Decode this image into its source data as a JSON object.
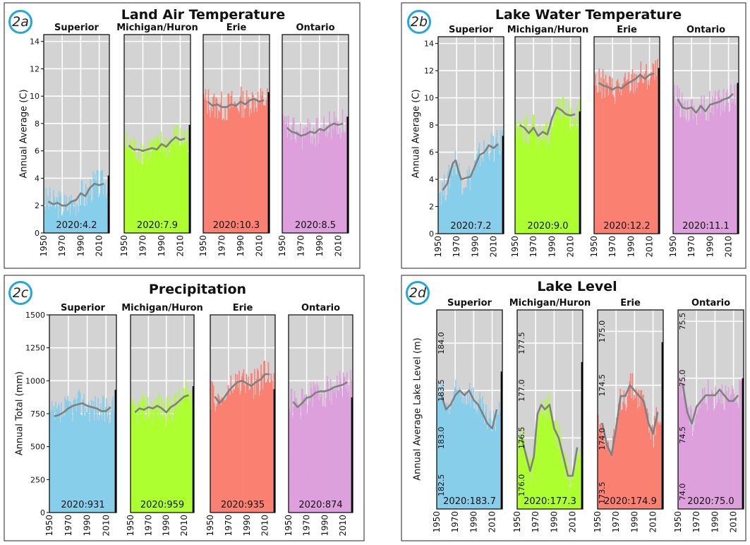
{
  "chart_data": [
    {
      "id": "2a",
      "badge": "2a",
      "title": "Land Air Temperature",
      "type": "bar",
      "ylabel": "Annual Average (C)",
      "ylim": [
        0,
        14.5
      ],
      "yticks": [
        0,
        2,
        4,
        6,
        8,
        10,
        12,
        14
      ],
      "yticks_on_each": false,
      "xticks": [
        "1950",
        "1970",
        "1990",
        "2010"
      ],
      "lakes": [
        {
          "name": "Superior",
          "color": "#87ceeb",
          "label": "2020:4.2",
          "final": 4.2,
          "base": 2.3,
          "trend": [
            [
              1955,
              2.3
            ],
            [
              1960,
              2.1
            ],
            [
              1965,
              2.2
            ],
            [
              1970,
              2.0
            ],
            [
              1975,
              2.0
            ],
            [
              1980,
              2.3
            ],
            [
              1985,
              2.4
            ],
            [
              1990,
              2.9
            ],
            [
              1995,
              2.7
            ],
            [
              2000,
              3.3
            ],
            [
              2005,
              3.6
            ],
            [
              2010,
              3.5
            ],
            [
              2015,
              3.6
            ]
          ]
        },
        {
          "name": "Michigan/Huron",
          "color": "#adff2f",
          "label": "2020:7.9",
          "final": 7.9,
          "base": 6.3,
          "trend": [
            [
              1955,
              6.4
            ],
            [
              1960,
              6.1
            ],
            [
              1965,
              6.1
            ],
            [
              1970,
              6.0
            ],
            [
              1975,
              6.1
            ],
            [
              1980,
              6.2
            ],
            [
              1985,
              6.1
            ],
            [
              1990,
              6.5
            ],
            [
              1995,
              6.3
            ],
            [
              2000,
              6.7
            ],
            [
              2005,
              7.0
            ],
            [
              2010,
              6.8
            ],
            [
              2015,
              6.9
            ]
          ]
        },
        {
          "name": "Erie",
          "color": "#fa8072",
          "label": "2020:10.3",
          "final": 10.3,
          "base": 9.5,
          "trend": [
            [
              1955,
              9.6
            ],
            [
              1960,
              9.3
            ],
            [
              1965,
              9.4
            ],
            [
              1970,
              9.2
            ],
            [
              1975,
              9.2
            ],
            [
              1980,
              9.4
            ],
            [
              1985,
              9.3
            ],
            [
              1990,
              9.6
            ],
            [
              1995,
              9.4
            ],
            [
              2000,
              9.7
            ],
            [
              2005,
              9.8
            ],
            [
              2010,
              9.6
            ],
            [
              2015,
              9.7
            ]
          ]
        },
        {
          "name": "Ontario",
          "color": "#dda0dd",
          "label": "2020:8.5",
          "final": 8.5,
          "base": 7.5,
          "trend": [
            [
              1955,
              7.7
            ],
            [
              1960,
              7.4
            ],
            [
              1965,
              7.3
            ],
            [
              1970,
              7.1
            ],
            [
              1975,
              7.2
            ],
            [
              1980,
              7.4
            ],
            [
              1985,
              7.3
            ],
            [
              1990,
              7.6
            ],
            [
              1995,
              7.5
            ],
            [
              2000,
              7.8
            ],
            [
              2005,
              8.0
            ],
            [
              2010,
              7.9
            ],
            [
              2015,
              8.0
            ]
          ]
        }
      ]
    },
    {
      "id": "2b",
      "badge": "2b",
      "title": "Lake Water Temperature",
      "type": "bar",
      "ylabel": "Annual Average (C)",
      "ylim": [
        0,
        14.5
      ],
      "yticks": [
        0,
        2,
        4,
        6,
        8,
        10,
        12,
        14
      ],
      "yticks_on_each": false,
      "xticks": [
        "1950",
        "1970",
        "1990",
        "2010"
      ],
      "lakes": [
        {
          "name": "Superior",
          "color": "#87ceeb",
          "label": "2020:7.2",
          "final": 7.2,
          "base": 4.6,
          "trend": [
            [
              1955,
              3.2
            ],
            [
              1960,
              3.7
            ],
            [
              1963,
              4.5
            ],
            [
              1966,
              5.2
            ],
            [
              1969,
              5.4
            ],
            [
              1972,
              4.6
            ],
            [
              1975,
              4.0
            ],
            [
              1980,
              4.1
            ],
            [
              1985,
              4.2
            ],
            [
              1990,
              5.0
            ],
            [
              1995,
              5.8
            ],
            [
              2000,
              6.0
            ],
            [
              2005,
              6.5
            ],
            [
              2010,
              6.3
            ],
            [
              2015,
              6.6
            ]
          ]
        },
        {
          "name": "Michigan/Huron",
          "color": "#adff2f",
          "label": "2020:9.0",
          "final": 9.0,
          "base": 7.8,
          "trend": [
            [
              1955,
              8.0
            ],
            [
              1960,
              7.8
            ],
            [
              1965,
              7.4
            ],
            [
              1970,
              7.8
            ],
            [
              1975,
              7.2
            ],
            [
              1980,
              7.5
            ],
            [
              1985,
              7.3
            ],
            [
              1990,
              8.5
            ],
            [
              1995,
              9.3
            ],
            [
              2000,
              9.1
            ],
            [
              2005,
              8.8
            ],
            [
              2010,
              8.7
            ],
            [
              2015,
              8.8
            ]
          ]
        },
        {
          "name": "Erie",
          "color": "#fa8072",
          "label": "2020:12.2",
          "final": 12.2,
          "base": 11.2,
          "trend": [
            [
              1955,
              11.1
            ],
            [
              1960,
              10.9
            ],
            [
              1965,
              10.8
            ],
            [
              1970,
              10.6
            ],
            [
              1975,
              10.8
            ],
            [
              1980,
              10.7
            ],
            [
              1985,
              11.0
            ],
            [
              1990,
              11.2
            ],
            [
              1995,
              11.4
            ],
            [
              2000,
              11.7
            ],
            [
              2005,
              11.4
            ],
            [
              2010,
              11.7
            ],
            [
              2015,
              11.8
            ]
          ]
        },
        {
          "name": "Ontario",
          "color": "#dda0dd",
          "label": "2020:11.1",
          "final": 11.1,
          "base": 9.4,
          "trend": [
            [
              1955,
              9.9
            ],
            [
              1960,
              9.3
            ],
            [
              1965,
              9.2
            ],
            [
              1970,
              9.3
            ],
            [
              1975,
              8.9
            ],
            [
              1980,
              9.4
            ],
            [
              1985,
              9.0
            ],
            [
              1990,
              9.5
            ],
            [
              1995,
              9.6
            ],
            [
              2000,
              9.7
            ],
            [
              2005,
              9.9
            ],
            [
              2010,
              10.0
            ],
            [
              2015,
              10.3
            ]
          ]
        }
      ]
    },
    {
      "id": "2c",
      "badge": "2c",
      "title": "Precipitation",
      "type": "bar",
      "ylabel": "Annual Total (mm)",
      "ylim": [
        0,
        1500
      ],
      "yticks": [
        0,
        250,
        500,
        750,
        1000,
        1250,
        1500
      ],
      "yticks_on_each": false,
      "xticks": [
        "1950",
        "1970",
        "1990",
        "2010"
      ],
      "lakes": [
        {
          "name": "Superior",
          "color": "#87ceeb",
          "label": "2020:931",
          "final": 931,
          "base": 790,
          "trend": [
            [
              1955,
              730
            ],
            [
              1960,
              740
            ],
            [
              1965,
              760
            ],
            [
              1970,
              790
            ],
            [
              1975,
              810
            ],
            [
              1980,
              820
            ],
            [
              1985,
              830
            ],
            [
              1990,
              810
            ],
            [
              1995,
              800
            ],
            [
              2000,
              790
            ],
            [
              2005,
              770
            ],
            [
              2010,
              770
            ],
            [
              2015,
              800
            ]
          ]
        },
        {
          "name": "Michigan/Huron",
          "color": "#adff2f",
          "label": "2020:959",
          "final": 959,
          "base": 820,
          "trend": [
            [
              1955,
              760
            ],
            [
              1960,
              790
            ],
            [
              1965,
              780
            ],
            [
              1970,
              800
            ],
            [
              1975,
              790
            ],
            [
              1980,
              810
            ],
            [
              1985,
              790
            ],
            [
              1990,
              760
            ],
            [
              1995,
              800
            ],
            [
              2000,
              820
            ],
            [
              2005,
              850
            ],
            [
              2010,
              880
            ],
            [
              2015,
              890
            ]
          ]
        },
        {
          "name": "Erie",
          "color": "#fa8072",
          "label": "2020:935",
          "final": 935,
          "base": 920,
          "trend": [
            [
              1955,
              880
            ],
            [
              1960,
              830
            ],
            [
              1965,
              870
            ],
            [
              1970,
              920
            ],
            [
              1975,
              960
            ],
            [
              1980,
              990
            ],
            [
              1985,
              1000
            ],
            [
              1990,
              980
            ],
            [
              1995,
              960
            ],
            [
              2000,
              990
            ],
            [
              2005,
              1010
            ],
            [
              2010,
              1050
            ],
            [
              2015,
              1050
            ]
          ]
        },
        {
          "name": "Ontario",
          "color": "#dda0dd",
          "label": "2020:874",
          "final": 874,
          "base": 880,
          "trend": [
            [
              1955,
              840
            ],
            [
              1960,
              800
            ],
            [
              1965,
              830
            ],
            [
              1970,
              870
            ],
            [
              1975,
              880
            ],
            [
              1980,
              910
            ],
            [
              1985,
              920
            ],
            [
              1990,
              920
            ],
            [
              1995,
              930
            ],
            [
              2000,
              950
            ],
            [
              2005,
              960
            ],
            [
              2010,
              970
            ],
            [
              2015,
              990
            ]
          ]
        }
      ]
    },
    {
      "id": "2d",
      "badge": "2d",
      "title": "Lake Level",
      "type": "bar",
      "ylabel": "Annual Average Lake Level (m)",
      "yticks_on_each": true,
      "xticks": [
        "1950",
        "1970",
        "1990",
        "2010"
      ],
      "lakes": [
        {
          "name": "Superior",
          "color": "#87ceeb",
          "label": "2020:183.7",
          "final": 183.7,
          "base": 183.3,
          "ylim": [
            182.25,
            184.35
          ],
          "yticks": [
            182.5,
            183.0,
            183.5,
            184.0
          ],
          "trend": [
            [
              1955,
              183.45
            ],
            [
              1960,
              183.3
            ],
            [
              1965,
              183.35
            ],
            [
              1970,
              183.45
            ],
            [
              1975,
              183.5
            ],
            [
              1980,
              183.45
            ],
            [
              1985,
              183.5
            ],
            [
              1990,
              183.4
            ],
            [
              1995,
              183.35
            ],
            [
              2000,
              183.25
            ],
            [
              2005,
              183.15
            ],
            [
              2010,
              183.1
            ],
            [
              2015,
              183.3
            ]
          ]
        },
        {
          "name": "Michigan/Huron",
          "color": "#adff2f",
          "label": "2020:177.3",
          "final": 177.3,
          "base": 176.5,
          "ylim": [
            175.75,
            177.85
          ],
          "yticks": [
            176.0,
            176.5,
            177.0,
            177.5
          ],
          "trend": [
            [
              1955,
              176.5
            ],
            [
              1960,
              176.3
            ],
            [
              1964,
              176.15
            ],
            [
              1968,
              176.3
            ],
            [
              1972,
              176.75
            ],
            [
              1976,
              176.85
            ],
            [
              1980,
              176.8
            ],
            [
              1985,
              176.85
            ],
            [
              1990,
              176.6
            ],
            [
              1995,
              176.5
            ],
            [
              2000,
              176.3
            ],
            [
              2005,
              176.1
            ],
            [
              2010,
              176.1
            ],
            [
              2015,
              176.4
            ]
          ]
        },
        {
          "name": "Erie",
          "color": "#fa8072",
          "label": "2020:174.9",
          "final": 174.9,
          "base": 174.2,
          "ylim": [
            173.35,
            175.2
          ],
          "yticks": [
            173.5,
            174.0,
            174.5,
            175.0
          ],
          "trend": [
            [
              1955,
              174.15
            ],
            [
              1960,
              173.95
            ],
            [
              1965,
              173.85
            ],
            [
              1970,
              174.1
            ],
            [
              1975,
              174.4
            ],
            [
              1980,
              174.4
            ],
            [
              1985,
              174.5
            ],
            [
              1990,
              174.45
            ],
            [
              1995,
              174.4
            ],
            [
              2000,
              174.35
            ],
            [
              2005,
              174.15
            ],
            [
              2010,
              174.05
            ],
            [
              2015,
              174.25
            ]
          ]
        },
        {
          "name": "Ontario",
          "color": "#dda0dd",
          "label": "2020:75.0",
          "final": 75.0,
          "base": 74.8,
          "ylim": [
            73.85,
            75.6
          ],
          "yticks": [
            74.0,
            74.5,
            75.0,
            75.5
          ],
          "trend": [
            [
              1955,
              74.95
            ],
            [
              1960,
              74.7
            ],
            [
              1965,
              74.6
            ],
            [
              1970,
              74.75
            ],
            [
              1975,
              74.8
            ],
            [
              1980,
              74.85
            ],
            [
              1985,
              74.85
            ],
            [
              1990,
              74.85
            ],
            [
              1995,
              74.9
            ],
            [
              2000,
              74.85
            ],
            [
              2005,
              74.8
            ],
            [
              2010,
              74.8
            ],
            [
              2015,
              74.85
            ]
          ]
        }
      ]
    }
  ]
}
